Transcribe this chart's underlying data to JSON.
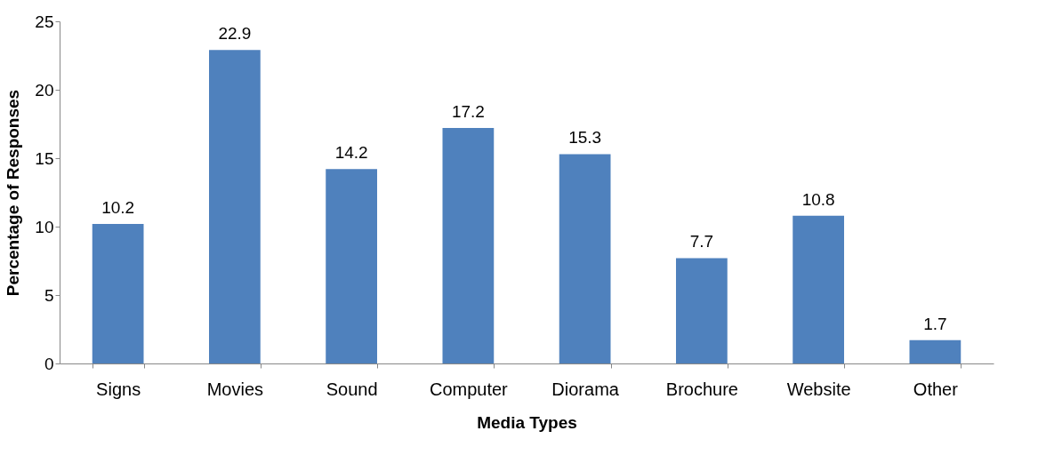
{
  "chart_data": {
    "type": "bar",
    "xlabel": "Media Types",
    "ylabel": "Percentage of Responses",
    "categories": [
      "Signs",
      "Movies",
      "Sound",
      "Computer",
      "Diorama",
      "Brochure",
      "Website",
      "Other"
    ],
    "values": [
      10.2,
      22.9,
      14.2,
      17.2,
      15.3,
      7.7,
      10.8,
      1.7
    ],
    "color": "#4f81bd",
    "ylim": [
      0,
      25
    ],
    "yticks": [
      0,
      5,
      10,
      15,
      20,
      25
    ],
    "data_labels": true
  }
}
